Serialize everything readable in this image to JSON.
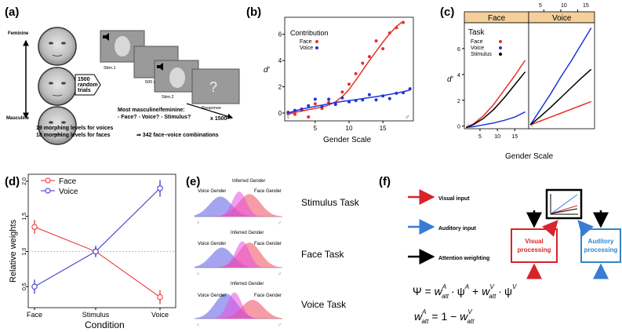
{
  "figure": {
    "panel_labels": [
      "(a)",
      "(b)",
      "(c)",
      "(d)",
      "(e)",
      "(f)"
    ]
  },
  "panel_a": {
    "feminine": "Feminine",
    "masculine": "Masculine",
    "trials": [
      "1500",
      "random",
      "trials"
    ],
    "stim1": "Stim.1",
    "isi": "500 ms",
    "stim2": "Stim.2",
    "response": "Response",
    "question_mark": "?",
    "question_title": "Most masculine/feminine:",
    "question_options": "- Face? - Voice? - Stimulus?",
    "repeat": "x 1500",
    "levels_voices": "19 morphing levels for voices",
    "levels_faces": "18 morphing levels for faces",
    "combinations": "⇒ 342 face–voice combinations"
  },
  "panel_b": {
    "chart_data": {
      "type": "scatter",
      "title": "",
      "xlabel": "Gender Scale",
      "ylabel": "d'",
      "xlim": [
        0.5,
        19.5
      ],
      "ylim": [
        -0.6,
        7.3
      ],
      "xticks": [
        5,
        10,
        15
      ],
      "yticks": [
        0,
        2,
        4,
        6
      ],
      "legend_title": "Contribution",
      "legend_position": "top-left",
      "series": [
        {
          "name": "Face",
          "color": "#e8302a",
          "x": [
            1,
            2,
            3,
            4,
            5,
            6,
            7,
            8,
            9,
            10,
            11,
            12,
            13,
            14,
            15,
            16,
            17,
            18
          ],
          "y": [
            -0.05,
            -0.1,
            0.2,
            -0.3,
            0.7,
            0.35,
            0.8,
            0.75,
            1.6,
            2.2,
            3.0,
            3.8,
            4.3,
            5.5,
            4.9,
            6.1,
            6.5,
            6.9
          ],
          "fit": [
            -0.1,
            0.05,
            0.15,
            0.25,
            0.35,
            0.45,
            0.6,
            0.85,
            1.25,
            1.8,
            2.5,
            3.25,
            4.0,
            4.7,
            5.4,
            6.05,
            6.6,
            7.0
          ]
        },
        {
          "name": "Voice",
          "color": "#2035d8",
          "x": [
            1,
            2,
            3,
            4,
            5,
            6,
            7,
            8,
            9,
            10,
            11,
            12,
            13,
            14,
            15,
            16,
            17,
            18,
            19
          ],
          "y": [
            0.05,
            0.2,
            0.3,
            0.55,
            1.05,
            0.5,
            1.05,
            0.65,
            1.15,
            0.85,
            0.95,
            1.0,
            1.4,
            1.0,
            1.3,
            1.1,
            1.5,
            1.55,
            1.85
          ],
          "fit": [
            0.0,
            0.15,
            0.3,
            0.4,
            0.5,
            0.6,
            0.7,
            0.8,
            0.88,
            0.95,
            1.02,
            1.1,
            1.17,
            1.25,
            1.33,
            1.42,
            1.52,
            1.62,
            1.75
          ]
        }
      ]
    },
    "legend_title": "Contribution",
    "legend_face": "Face",
    "legend_voice": "Voice",
    "female_symbol": "♀",
    "male_symbol": "♂"
  },
  "panel_c": {
    "chart_data": {
      "type": "line",
      "xlabel": "Gender Scale",
      "ylabel": "d'",
      "facets": [
        "Face",
        "Voice"
      ],
      "ylim": [
        -0.2,
        8.0
      ],
      "yticks": [
        0,
        2,
        4,
        6
      ],
      "face_xlim": [
        0.5,
        19
      ],
      "voice_xlim": [
        0.5,
        20
      ],
      "face_xticks": [
        5,
        10,
        15
      ],
      "voice_xticks": [
        5,
        10,
        15
      ],
      "legend_title": "Task",
      "legend_position": "top-left",
      "face_series": [
        {
          "name": "Face",
          "color": "#e8302a",
          "x": [
            1,
            3,
            6,
            9,
            12,
            15,
            18
          ],
          "y": [
            -0.1,
            0.15,
            0.8,
            1.7,
            2.8,
            3.9,
            5.1
          ]
        },
        {
          "name": "Voice",
          "color": "#2035d8",
          "x": [
            1,
            3,
            6,
            9,
            12,
            15,
            18
          ],
          "y": [
            -0.1,
            -0.05,
            0.1,
            0.25,
            0.45,
            0.7,
            1.1
          ]
        },
        {
          "name": "Stimulus",
          "color": "#000000",
          "x": [
            1,
            3,
            6,
            9,
            12,
            15,
            18
          ],
          "y": [
            -0.1,
            0.1,
            0.6,
            1.3,
            2.2,
            3.2,
            4.2
          ]
        }
      ],
      "voice_series": [
        {
          "name": "Face",
          "color": "#e8302a",
          "x": [
            1,
            4,
            7,
            10,
            13,
            16,
            19
          ],
          "y": [
            0.1,
            0.4,
            0.7,
            1.0,
            1.3,
            1.6,
            1.9
          ]
        },
        {
          "name": "Voice",
          "color": "#2035d8",
          "x": [
            1,
            4,
            7,
            10,
            13,
            16,
            19
          ],
          "y": [
            0.1,
            1.3,
            2.5,
            3.8,
            5.0,
            6.3,
            7.6
          ]
        },
        {
          "name": "Stimulus",
          "color": "#000000",
          "x": [
            1,
            4,
            7,
            10,
            13,
            16,
            19
          ],
          "y": [
            0.1,
            0.75,
            1.45,
            2.2,
            2.95,
            3.7,
            4.4
          ]
        }
      ]
    },
    "facet_face": "Face",
    "facet_voice": "Voice",
    "legend_title": "Task",
    "legend_face": "Face",
    "legend_voice": "Voice",
    "legend_stimulus": "Stimulus",
    "top_ticks": [
      "5",
      "10",
      "15"
    ],
    "female_symbol": "♀",
    "male_symbol": "♂"
  },
  "panel_d": {
    "chart_data": {
      "type": "line",
      "xlabel": "Condition",
      "ylabel": "Relative weights",
      "categories": [
        "Face",
        "Stimulus",
        "Voice"
      ],
      "ylim": [
        0.2,
        2.1
      ],
      "yticks": [
        0.5,
        1.0,
        1.5,
        2.0
      ],
      "ytick_labels": [
        "0.5",
        "1.0",
        "1.5",
        "2.0"
      ],
      "reference_line": 1.0,
      "legend_position": "top-left",
      "series": [
        {
          "name": "Face",
          "color": "#e8302a",
          "values": [
            1.35,
            1.0,
            0.35
          ],
          "err": [
            0.1,
            0.08,
            0.1
          ]
        },
        {
          "name": "Voice",
          "color": "#3030d0",
          "values": [
            0.5,
            1.0,
            1.9
          ],
          "err": [
            0.1,
            0.08,
            0.12
          ]
        }
      ]
    },
    "legend_face": "Face",
    "legend_voice": "Voice"
  },
  "panel_e": {
    "rows": [
      {
        "task": "Stimulus Task",
        "inferred": "Inferred Gender",
        "voice": "Voice Gender",
        "face": "Face Gender"
      },
      {
        "task": "Face Task",
        "inferred": "Inferred Gender",
        "voice": "Voice Gender",
        "face": "Face Gender"
      },
      {
        "task": "Voice Task",
        "inferred": "Inferred Gender",
        "voice": "Voice Gender",
        "face": "Face Gender"
      }
    ],
    "female_symbol": "♀",
    "male_symbol": "♂"
  },
  "panel_f": {
    "visual_input": "Visual input",
    "auditory_input": "Auditory input",
    "attention_weighting": "Attention weighting",
    "visual_processing": [
      "Visual",
      "processing"
    ],
    "auditory_processing": [
      "Auditory",
      "processing"
    ],
    "colors": {
      "visual": "#d8232a",
      "auditory": "#3a7bd5",
      "auditory_box": "#2f86c8"
    },
    "eq1": {
      "lhs": "Ψ = ",
      "w": "w",
      "sub": "att",
      "supA": "A",
      "supV": "V",
      "psi": "ψ",
      "dot": "·",
      "plus": "+"
    },
    "eq2": {
      "w": "w",
      "sub": "att",
      "supA": "A",
      "supV": "V",
      "rhs": "= 1 −"
    }
  }
}
